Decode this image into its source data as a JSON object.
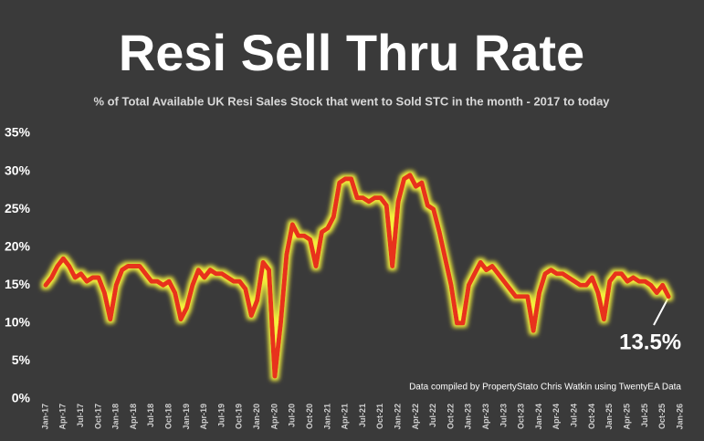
{
  "chart_data": {
    "type": "line",
    "title": "Resi Sell Thru Rate",
    "subtitle": "% of Total Available UK Resi Sales Stock that went to Sold STC in the month - 2017 to today",
    "source": "Data compiled by PropertyStato Chris Watkin using TwentyEA Data",
    "categories": [
      "Jan-17",
      null,
      null,
      "Apr-17",
      null,
      null,
      "Jul-17",
      null,
      null,
      "Oct-17",
      null,
      null,
      "Jan-18",
      null,
      null,
      "Apr-18",
      null,
      null,
      "Jul-18",
      null,
      null,
      "Oct-18",
      null,
      null,
      "Jan-19",
      null,
      null,
      "Apr-19",
      null,
      null,
      "Jul-19",
      null,
      null,
      "Oct-19",
      null,
      null,
      "Jan-20",
      null,
      null,
      "Apr-20",
      null,
      null,
      "Jul-20",
      null,
      null,
      "Oct-20",
      null,
      null,
      "Jan-21",
      null,
      null,
      "Apr-21",
      null,
      null,
      "Jul-21",
      null,
      null,
      "Oct-21",
      null,
      null,
      "Jan-22",
      null,
      null,
      "Apr-22",
      null,
      null,
      "Jul-22",
      null,
      null,
      "Oct-22",
      null,
      null,
      "Jan-23",
      null,
      null,
      "Apr-23",
      null,
      null,
      "Jul-23",
      null,
      null,
      "Oct-23",
      null,
      null,
      "Jan-24",
      null,
      null,
      "Apr-24",
      null,
      null,
      "Jul-24",
      null,
      null,
      "Oct-24",
      null,
      null,
      "Jan-25",
      null,
      null,
      "Apr-25",
      null,
      null,
      "Jul-25",
      null,
      null,
      "Oct-25",
      null,
      null,
      "Jan-26"
    ],
    "series": [
      {
        "name": "Sell Thru Rate",
        "color": "#e8311f",
        "glow": "#f5f03c",
        "values": [
          15,
          16,
          17.5,
          18.5,
          17.5,
          16,
          16.5,
          15.5,
          16,
          16,
          14,
          10.5,
          15,
          17,
          17.5,
          17.5,
          17.5,
          16.5,
          15.5,
          15.5,
          15,
          15.5,
          14,
          10.5,
          12,
          15,
          17,
          16,
          17,
          16.5,
          16.5,
          16,
          15.5,
          15.5,
          14.5,
          11,
          13,
          18,
          17,
          3,
          10,
          19,
          23,
          21.5,
          21.5,
          21,
          17.5,
          22,
          22.5,
          24,
          28.5,
          29,
          29,
          26.5,
          26.5,
          26,
          26.5,
          26.5,
          25.5,
          17.5,
          26,
          29,
          29.5,
          28,
          28.5,
          25.5,
          25,
          22,
          18.5,
          15,
          10,
          10,
          15,
          16.5,
          18,
          17,
          17.5,
          16.5,
          15.5,
          14.5,
          13.5,
          13.5,
          13.5,
          9,
          14,
          16.5,
          17,
          16.5,
          16.5,
          16,
          15.5,
          15,
          15,
          16,
          14,
          10.5,
          15.5,
          16.5,
          16.5,
          15.5,
          16,
          15.5,
          15.5,
          15,
          14,
          15,
          13.5,
          null,
          null
        ],
        "value_labels": [
          null,
          null,
          null,
          null,
          null,
          null,
          null,
          null,
          null,
          null,
          null,
          null,
          null,
          null,
          null,
          null,
          null,
          null,
          null,
          null,
          null,
          null,
          null,
          null,
          null,
          null,
          null,
          null,
          null,
          null,
          null,
          null,
          null,
          null,
          null,
          null,
          null,
          null,
          null,
          null,
          null,
          null,
          null,
          null,
          null,
          null,
          null,
          null,
          null,
          null,
          null,
          null,
          null,
          null,
          null,
          null,
          null,
          null,
          null,
          null,
          null,
          null,
          null,
          null,
          null,
          null,
          null,
          null,
          null,
          null,
          null,
          null,
          null,
          null,
          null,
          null,
          null,
          null,
          null,
          null,
          null,
          null,
          null,
          null,
          null,
          null,
          null,
          null,
          null,
          null,
          null,
          null,
          null,
          null,
          null,
          null,
          null,
          null,
          null,
          null,
          null,
          null,
          null,
          null,
          null,
          null,
          "13.5%",
          null,
          null
        ]
      }
    ],
    "ylim": [
      0,
      35
    ],
    "yticks": [
      {
        "value": 0,
        "label": "0%"
      },
      {
        "value": 5,
        "label": "5%"
      },
      {
        "value": 10,
        "label": "10%"
      },
      {
        "value": 15,
        "label": "15%"
      },
      {
        "value": 20,
        "label": "20%"
      },
      {
        "value": 25,
        "label": "25%"
      },
      {
        "value": 30,
        "label": "30%"
      },
      {
        "value": 35,
        "label": "35%"
      }
    ],
    "grid": false
  }
}
